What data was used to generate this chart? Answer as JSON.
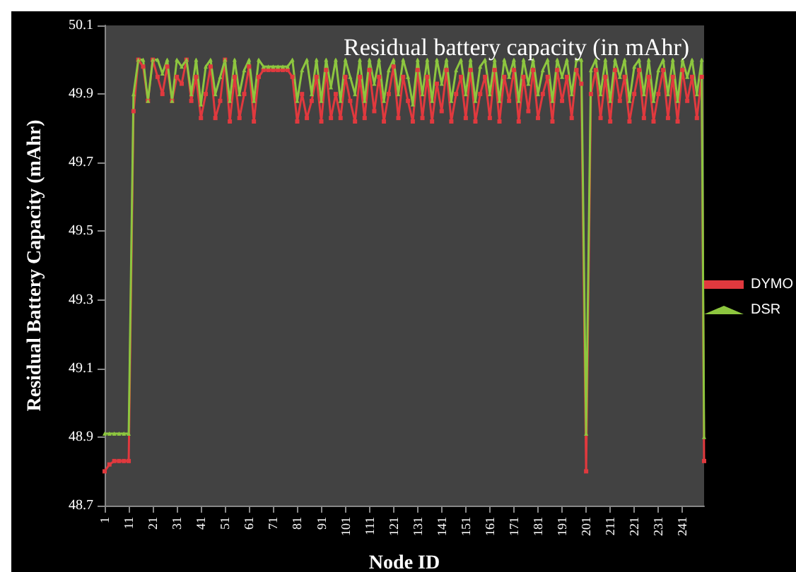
{
  "chart_data": {
    "type": "line",
    "title": "Residual battery capacity (in mAhr)",
    "xlabel": "Node ID",
    "ylabel": "Residual Battery Capacity (mAhr)",
    "x": [
      1,
      3,
      5,
      7,
      9,
      11,
      13,
      15,
      17,
      19,
      21,
      23,
      25,
      27,
      29,
      31,
      33,
      35,
      37,
      39,
      41,
      43,
      45,
      47,
      49,
      51,
      53,
      55,
      57,
      59,
      61,
      63,
      65,
      67,
      69,
      71,
      73,
      75,
      77,
      79,
      81,
      83,
      85,
      87,
      89,
      91,
      93,
      95,
      97,
      99,
      101,
      103,
      105,
      107,
      109,
      111,
      113,
      115,
      117,
      119,
      121,
      123,
      125,
      127,
      129,
      131,
      133,
      135,
      137,
      139,
      141,
      143,
      145,
      147,
      149,
      151,
      153,
      155,
      157,
      159,
      161,
      163,
      165,
      167,
      169,
      171,
      173,
      175,
      177,
      179,
      181,
      183,
      185,
      187,
      189,
      191,
      193,
      195,
      197,
      199,
      201,
      203,
      205,
      207,
      209,
      211,
      213,
      215,
      217,
      219,
      221,
      223,
      225,
      227,
      229,
      231,
      233,
      235,
      237,
      239,
      241,
      243,
      245,
      247,
      249,
      250
    ],
    "series": [
      {
        "name": "DYMO",
        "color": "#e0393e",
        "marker": "square",
        "values": [
          48.8,
          48.82,
          48.83,
          48.83,
          48.83,
          48.83,
          49.85,
          50.0,
          49.98,
          49.88,
          50.0,
          49.95,
          49.9,
          49.98,
          49.88,
          49.95,
          49.93,
          50.0,
          49.88,
          49.95,
          49.83,
          49.9,
          49.98,
          49.83,
          49.88,
          50.0,
          49.82,
          49.95,
          49.83,
          49.9,
          49.98,
          49.82,
          49.95,
          49.97,
          49.97,
          49.97,
          49.97,
          49.97,
          49.97,
          49.95,
          49.82,
          49.9,
          49.83,
          49.88,
          49.95,
          49.82,
          49.97,
          49.83,
          49.9,
          49.83,
          49.95,
          49.88,
          49.82,
          49.95,
          49.83,
          49.97,
          49.85,
          49.95,
          49.82,
          49.9,
          49.98,
          49.83,
          49.95,
          49.88,
          49.82,
          49.97,
          49.83,
          49.95,
          49.82,
          49.93,
          49.85,
          49.97,
          49.82,
          49.9,
          49.95,
          49.83,
          49.97,
          49.82,
          49.9,
          49.95,
          49.83,
          49.97,
          49.82,
          49.95,
          49.88,
          49.97,
          49.82,
          49.95,
          49.85,
          49.97,
          49.83,
          49.9,
          49.95,
          49.82,
          49.97,
          49.88,
          49.95,
          49.83,
          49.97,
          49.93,
          48.8,
          49.9,
          49.97,
          49.83,
          49.95,
          49.82,
          49.97,
          49.88,
          49.95,
          49.82,
          49.9,
          49.97,
          49.83,
          49.95,
          49.82,
          49.9,
          49.97,
          49.83,
          49.95,
          49.82,
          49.97,
          49.88,
          49.95,
          49.83,
          49.95,
          48.83
        ]
      },
      {
        "name": "DSR",
        "color": "#8dc63f",
        "marker": "triangle",
        "values": [
          48.91,
          48.91,
          48.91,
          48.91,
          48.91,
          48.91,
          49.9,
          50.0,
          50.0,
          49.88,
          50.0,
          50.0,
          49.96,
          50.0,
          49.88,
          50.0,
          49.98,
          50.0,
          49.9,
          50.0,
          49.87,
          49.98,
          50.0,
          49.9,
          49.95,
          50.0,
          49.88,
          50.0,
          49.9,
          49.97,
          50.0,
          49.88,
          50.0,
          49.98,
          49.98,
          49.98,
          49.98,
          49.98,
          49.98,
          50.0,
          49.88,
          49.97,
          50.0,
          49.9,
          50.0,
          49.88,
          50.0,
          49.92,
          50.0,
          49.88,
          50.0,
          49.95,
          49.9,
          50.0,
          49.88,
          50.0,
          49.93,
          50.0,
          49.88,
          49.97,
          50.0,
          49.9,
          50.0,
          49.95,
          49.87,
          50.0,
          49.9,
          50.0,
          49.88,
          50.0,
          49.93,
          50.0,
          49.88,
          49.97,
          50.0,
          49.9,
          50.0,
          49.88,
          49.98,
          50.0,
          49.9,
          50.0,
          49.88,
          50.0,
          49.95,
          50.0,
          49.88,
          50.0,
          49.93,
          50.0,
          49.9,
          49.97,
          50.0,
          49.88,
          50.0,
          49.95,
          50.0,
          49.9,
          50.0,
          50.0,
          48.91,
          49.97,
          50.0,
          49.9,
          50.0,
          49.88,
          50.0,
          49.95,
          50.0,
          49.88,
          49.98,
          50.0,
          49.9,
          50.0,
          49.88,
          49.97,
          50.0,
          49.9,
          50.0,
          49.88,
          50.0,
          49.95,
          50.0,
          49.9,
          50.0,
          48.9
        ]
      }
    ],
    "xlim": [
      1,
      250
    ],
    "xticks": [
      1,
      11,
      21,
      31,
      41,
      51,
      61,
      71,
      81,
      91,
      101,
      111,
      121,
      131,
      141,
      151,
      161,
      171,
      181,
      191,
      201,
      211,
      221,
      231,
      241
    ],
    "ylim": [
      48.7,
      50.1
    ],
    "yticks": [
      48.7,
      48.9,
      49.1,
      49.3,
      49.5,
      49.7,
      49.9,
      50.1
    ],
    "grid": false,
    "legend": "right",
    "line_style": "solid"
  }
}
